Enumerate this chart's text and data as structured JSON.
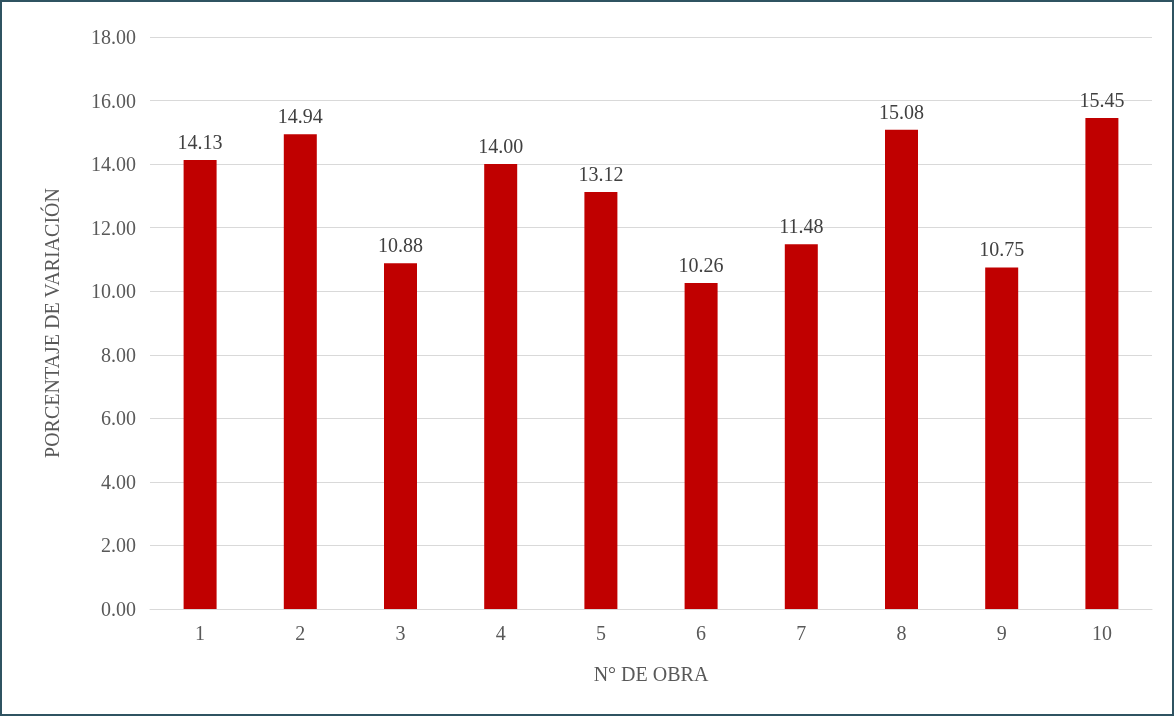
{
  "chart_data": {
    "type": "bar",
    "xlabel": "N° DE OBRA",
    "ylabel": "PORCENTAJE DE VARIACIÓN",
    "categories": [
      "1",
      "2",
      "3",
      "4",
      "5",
      "6",
      "7",
      "8",
      "9",
      "10"
    ],
    "values": [
      14.13,
      14.94,
      10.88,
      14.0,
      13.12,
      10.26,
      11.48,
      15.08,
      10.75,
      15.45
    ],
    "value_labels": [
      "14.13",
      "14.94",
      "10.88",
      "14.00",
      "13.12",
      "10.26",
      "11.48",
      "15.08",
      "10.75",
      "15.45"
    ],
    "color": "#c00000",
    "ylim": [
      0,
      18
    ],
    "yticks": [
      {
        "value": 0,
        "label": "0.00"
      },
      {
        "value": 2,
        "label": "2.00"
      },
      {
        "value": 4,
        "label": "4.00"
      },
      {
        "value": 6,
        "label": "6.00"
      },
      {
        "value": 8,
        "label": "8.00"
      },
      {
        "value": 10,
        "label": "10.00"
      },
      {
        "value": 12,
        "label": "12.00"
      },
      {
        "value": 14,
        "label": "14.00"
      },
      {
        "value": 16,
        "label": "16.00"
      },
      {
        "value": 18,
        "label": "18.00"
      }
    ],
    "grid": true
  }
}
